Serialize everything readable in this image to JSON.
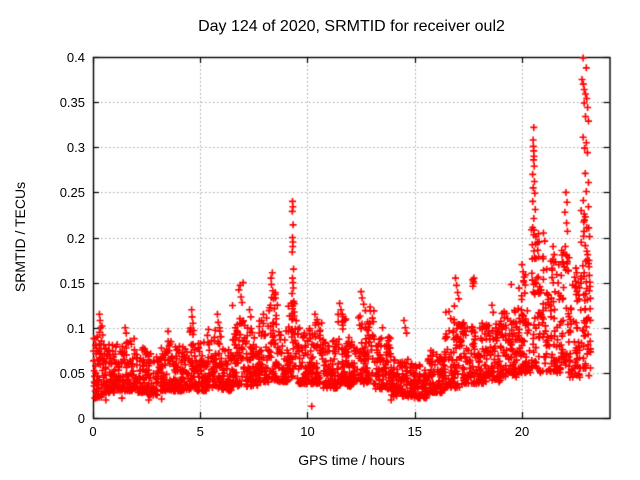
{
  "chart_data": {
    "type": "scatter",
    "title": "Day 124 of 2020, SRMTID for receiver oul2",
    "xlabel": "GPS time / hours",
    "ylabel": "SRMTID / TECUs",
    "xlim": [
      0,
      24.08
    ],
    "ylim": [
      0,
      0.4
    ],
    "xticks": {
      "values": [
        0,
        5,
        10,
        15,
        20
      ],
      "labels": [
        "0",
        "5",
        "10",
        "15",
        "20"
      ]
    },
    "yticks": {
      "values": [
        0,
        0.05,
        0.1,
        0.15,
        0.2,
        0.25,
        0.3,
        0.35,
        0.4
      ],
      "labels": [
        "0",
        "0.05",
        "0.1",
        "0.15",
        "0.2",
        "0.25",
        "0.3",
        "0.35",
        "0.4"
      ]
    },
    "grid": {
      "show": true,
      "style": "dotted",
      "color": "#a8a8a8"
    },
    "legend": {
      "show": false
    },
    "marker": {
      "glyph": "+",
      "color": "#ff0000",
      "size": 7
    },
    "axis_color": "#000000",
    "background": "#ffffff",
    "series": [
      {
        "name": "SRMTID",
        "peak_points": [
          [
            0.3,
            0.115
          ],
          [
            0.33,
            0.108
          ],
          [
            0.36,
            0.1
          ],
          [
            0.3,
            0.095
          ],
          [
            0.42,
            0.102
          ],
          [
            0.45,
            0.092
          ],
          [
            0.6,
            0.02
          ],
          [
            1.35,
            0.022
          ],
          [
            2.6,
            0.02
          ],
          [
            3.2,
            0.021
          ],
          [
            1.5,
            0.1
          ],
          [
            1.55,
            0.094
          ],
          [
            3.5,
            0.096
          ],
          [
            4.6,
            0.12
          ],
          [
            4.62,
            0.112
          ],
          [
            4.66,
            0.105
          ],
          [
            4.7,
            0.097
          ],
          [
            5.8,
            0.115
          ],
          [
            5.84,
            0.106
          ],
          [
            5.9,
            0.1
          ],
          [
            6.8,
            0.142
          ],
          [
            6.86,
            0.147
          ],
          [
            6.9,
            0.134
          ],
          [
            7.0,
            0.15
          ],
          [
            6.95,
            0.128
          ],
          [
            7.3,
            0.12
          ],
          [
            7.36,
            0.112
          ],
          [
            8.3,
            0.155
          ],
          [
            8.32,
            0.148
          ],
          [
            8.36,
            0.161
          ],
          [
            8.38,
            0.141
          ],
          [
            8.42,
            0.132
          ],
          [
            8.28,
            0.125
          ],
          [
            9.3,
            0.24
          ],
          [
            9.32,
            0.234
          ],
          [
            9.29,
            0.229
          ],
          [
            9.33,
            0.214
          ],
          [
            9.3,
            0.2
          ],
          [
            9.32,
            0.195
          ],
          [
            9.31,
            0.19
          ],
          [
            9.29,
            0.184
          ],
          [
            9.35,
            0.165
          ],
          [
            9.3,
            0.155
          ],
          [
            9.32,
            0.15
          ],
          [
            9.34,
            0.144
          ],
          [
            9.28,
            0.138
          ],
          [
            9.36,
            0.129
          ],
          [
            9.3,
            0.121
          ],
          [
            9.38,
            0.113
          ],
          [
            10.35,
            0.115
          ],
          [
            10.45,
            0.109
          ],
          [
            10.52,
            0.104
          ],
          [
            10.2,
            0.013
          ],
          [
            11.5,
            0.127
          ],
          [
            11.56,
            0.12
          ],
          [
            11.62,
            0.115
          ],
          [
            12.5,
            0.14
          ],
          [
            12.55,
            0.133
          ],
          [
            12.62,
            0.126
          ],
          [
            12.7,
            0.119
          ],
          [
            12.45,
            0.113
          ],
          [
            13.5,
            0.1
          ],
          [
            13.9,
            0.02
          ],
          [
            14.5,
            0.108
          ],
          [
            14.56,
            0.1
          ],
          [
            14.62,
            0.094
          ],
          [
            16.9,
            0.155
          ],
          [
            16.95,
            0.147
          ],
          [
            17.0,
            0.139
          ],
          [
            17.05,
            0.132
          ],
          [
            16.85,
            0.124
          ],
          [
            16.6,
            0.118
          ],
          [
            17.7,
            0.153
          ],
          [
            17.73,
            0.149
          ],
          [
            17.76,
            0.155
          ],
          [
            17.71,
            0.146
          ],
          [
            17.75,
            0.151
          ],
          [
            18.6,
            0.125
          ],
          [
            18.66,
            0.117
          ],
          [
            20.0,
            0.17
          ],
          [
            20.05,
            0.162
          ],
          [
            19.5,
            0.148
          ],
          [
            20.55,
            0.322
          ],
          [
            20.52,
            0.308
          ],
          [
            20.53,
            0.301
          ],
          [
            20.55,
            0.296
          ],
          [
            20.56,
            0.29
          ],
          [
            20.54,
            0.286
          ],
          [
            20.57,
            0.279
          ],
          [
            20.5,
            0.27
          ],
          [
            20.58,
            0.262
          ],
          [
            20.52,
            0.255
          ],
          [
            20.6,
            0.249
          ],
          [
            20.5,
            0.24
          ],
          [
            20.62,
            0.231
          ],
          [
            20.55,
            0.221
          ],
          [
            20.5,
            0.211
          ],
          [
            20.65,
            0.201
          ],
          [
            20.48,
            0.192
          ],
          [
            20.56,
            0.185
          ],
          [
            21.0,
            0.205
          ],
          [
            21.06,
            0.196
          ],
          [
            21.45,
            0.19
          ],
          [
            21.5,
            0.181
          ],
          [
            21.56,
            0.173
          ],
          [
            21.4,
            0.166
          ],
          [
            21.62,
            0.159
          ],
          [
            22.05,
            0.25
          ],
          [
            22.1,
            0.239
          ],
          [
            22.0,
            0.228
          ],
          [
            22.08,
            0.216
          ],
          [
            22.12,
            0.207
          ],
          [
            22.02,
            0.19
          ],
          [
            22.06,
            0.181
          ],
          [
            22.1,
            0.171
          ],
          [
            22.16,
            0.163
          ],
          [
            22.85,
            0.399
          ],
          [
            23.0,
            0.388
          ],
          [
            22.8,
            0.375
          ],
          [
            22.86,
            0.37
          ],
          [
            22.9,
            0.364
          ],
          [
            22.96,
            0.359
          ],
          [
            23.02,
            0.354
          ],
          [
            22.9,
            0.349
          ],
          [
            23.06,
            0.344
          ],
          [
            22.96,
            0.334
          ],
          [
            23.1,
            0.329
          ],
          [
            22.85,
            0.311
          ],
          [
            23.0,
            0.305
          ],
          [
            22.92,
            0.299
          ],
          [
            23.05,
            0.294
          ],
          [
            22.95,
            0.271
          ],
          [
            23.1,
            0.261
          ],
          [
            23.0,
            0.251
          ],
          [
            22.86,
            0.241
          ],
          [
            23.1,
            0.234
          ],
          [
            22.9,
            0.226
          ],
          [
            23.02,
            0.211
          ],
          [
            23.15,
            0.201
          ],
          [
            22.95,
            0.191
          ],
          [
            23.06,
            0.181
          ],
          [
            23.1,
            0.171
          ],
          [
            22.9,
            0.161
          ],
          [
            23.0,
            0.151
          ],
          [
            23.14,
            0.141
          ],
          [
            23.05,
            0.131
          ],
          [
            22.95,
            0.121
          ],
          [
            23.1,
            0.111
          ],
          [
            23.0,
            0.101
          ],
          [
            22.9,
            0.091
          ],
          [
            23.08,
            0.081
          ],
          [
            23.04,
            0.071
          ],
          [
            22.96,
            0.058
          ],
          [
            23.12,
            0.047
          ]
        ],
        "dense_band": {
          "columns": [
            "x_start",
            "x_end",
            "n_points",
            "y_min",
            "y_max"
          ],
          "rows": [
            [
              0.0,
              0.5,
              60,
              0.022,
              0.09
            ],
            [
              0.5,
              1.0,
              60,
              0.028,
              0.082
            ],
            [
              1.0,
              1.5,
              55,
              0.03,
              0.085
            ],
            [
              1.5,
              2.0,
              55,
              0.03,
              0.088
            ],
            [
              2.0,
              2.5,
              55,
              0.028,
              0.078
            ],
            [
              2.5,
              3.0,
              55,
              0.025,
              0.075
            ],
            [
              3.0,
              3.5,
              55,
              0.03,
              0.08
            ],
            [
              3.5,
              4.0,
              55,
              0.03,
              0.085
            ],
            [
              4.0,
              4.5,
              55,
              0.03,
              0.08
            ],
            [
              4.5,
              4.8,
              35,
              0.033,
              0.1
            ],
            [
              4.8,
              5.3,
              55,
              0.03,
              0.085
            ],
            [
              5.3,
              6.0,
              75,
              0.033,
              0.1
            ],
            [
              6.0,
              6.5,
              55,
              0.03,
              0.088
            ],
            [
              6.5,
              7.1,
              65,
              0.035,
              0.125
            ],
            [
              7.1,
              7.7,
              65,
              0.035,
              0.1
            ],
            [
              7.7,
              8.2,
              55,
              0.04,
              0.115
            ],
            [
              8.2,
              8.6,
              45,
              0.042,
              0.14
            ],
            [
              8.6,
              9.1,
              55,
              0.04,
              0.1
            ],
            [
              9.1,
              9.5,
              45,
              0.045,
              0.135
            ],
            [
              9.5,
              10.2,
              75,
              0.038,
              0.1
            ],
            [
              10.2,
              10.7,
              55,
              0.038,
              0.11
            ],
            [
              10.7,
              11.4,
              75,
              0.033,
              0.09
            ],
            [
              11.4,
              11.8,
              45,
              0.038,
              0.115
            ],
            [
              11.8,
              12.3,
              55,
              0.035,
              0.09
            ],
            [
              12.3,
              13.1,
              85,
              0.038,
              0.125
            ],
            [
              13.1,
              13.9,
              85,
              0.032,
              0.09
            ],
            [
              13.9,
              14.7,
              85,
              0.024,
              0.065
            ],
            [
              14.7,
              15.6,
              95,
              0.022,
              0.06
            ],
            [
              15.6,
              16.4,
              85,
              0.028,
              0.075
            ],
            [
              16.4,
              17.3,
              95,
              0.033,
              0.12
            ],
            [
              17.3,
              18.2,
              95,
              0.038,
              0.105
            ],
            [
              18.2,
              19.0,
              85,
              0.04,
              0.105
            ],
            [
              19.0,
              19.8,
              85,
              0.045,
              0.12
            ],
            [
              19.8,
              20.4,
              65,
              0.05,
              0.16
            ],
            [
              20.4,
              20.8,
              50,
              0.055,
              0.21
            ],
            [
              20.8,
              21.5,
              70,
              0.05,
              0.18
            ],
            [
              21.5,
              22.2,
              70,
              0.05,
              0.19
            ],
            [
              22.2,
              22.7,
              55,
              0.045,
              0.17
            ],
            [
              22.7,
              23.2,
              55,
              0.055,
              0.23
            ]
          ]
        }
      }
    ]
  }
}
